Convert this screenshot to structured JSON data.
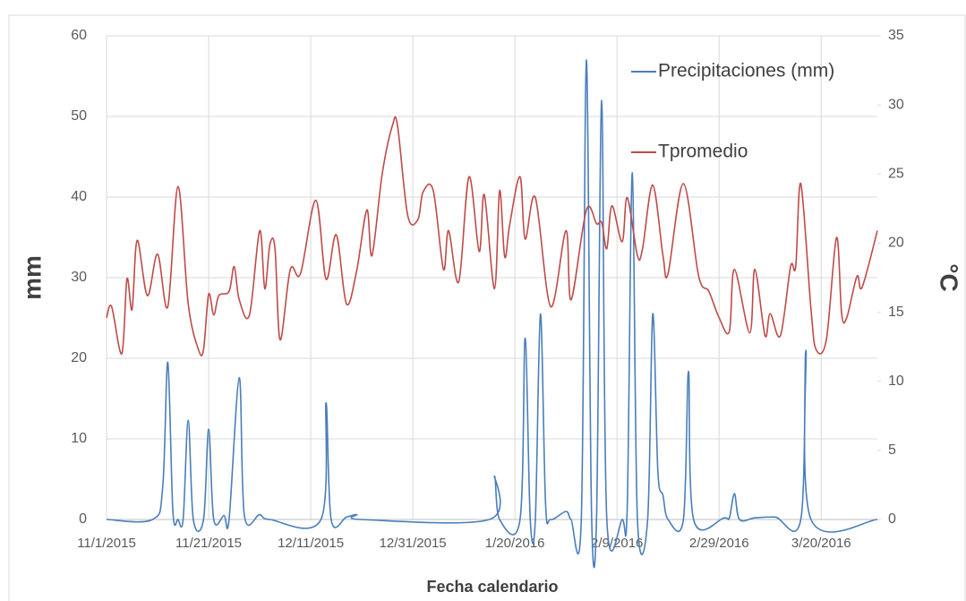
{
  "chart_data": {
    "type": "line",
    "x_label": "Fecha calendario",
    "y_label": "mm",
    "y2_label": "°C",
    "xlim": [
      "11/1/2015",
      "3/31/2016"
    ],
    "xticks": [
      "11/1/2015",
      "11/21/2015",
      "12/11/2015",
      "12/31/2015",
      "1/20/2016",
      "2/9/2016",
      "2/29/2016",
      "3/20/2016"
    ],
    "ylim": [
      0,
      60
    ],
    "yticks": [
      0,
      10,
      20,
      30,
      40,
      50,
      60
    ],
    "y2lim": [
      0,
      35
    ],
    "y2ticks": [
      0,
      5,
      10,
      15,
      20,
      25,
      30,
      35
    ],
    "grid": true,
    "legend": "upper right",
    "series": [
      {
        "name": "Precipitaciones (mm)",
        "color": "#4a7ebb",
        "axis": "y",
        "x": [
          "11/1/2015",
          "11/10/2015",
          "11/12/2015",
          "11/13/2015",
          "11/14/2015",
          "11/15/2015",
          "11/16/2015",
          "11/17/2015",
          "11/18/2015",
          "11/20/2015",
          "11/21/2015",
          "11/22/2015",
          "11/24/2015",
          "11/25/2015",
          "11/27/2015",
          "11/28/2015",
          "12/1/2015",
          "12/3/2015",
          "12/13/2015",
          "12/14/2015",
          "12/15/2015",
          "12/18/2015",
          "12/20/2015",
          "12/21/2015",
          "1/15/2016",
          "1/16/2016",
          "1/17/2016",
          "1/21/2016",
          "1/22/2016",
          "1/23/2016",
          "1/24/2016",
          "1/25/2016",
          "1/26/2016",
          "1/27/2016",
          "1/30/2016",
          "1/31/2016",
          "2/2/2016",
          "2/3/2016",
          "2/4/2016",
          "2/5/2016",
          "2/6/2016",
          "2/7/2016",
          "2/10/2016",
          "2/11/2016",
          "2/12/2016",
          "2/13/2016",
          "2/15/2016",
          "2/16/2016",
          "2/17/2016",
          "2/18/2016",
          "2/19/2016",
          "2/22/2016",
          "2/23/2016",
          "2/24/2016",
          "3/1/2016",
          "3/2/2016",
          "3/3/2016",
          "3/4/2016",
          "3/7/2016",
          "3/11/2016",
          "3/16/2016",
          "3/17/2016",
          "3/18/2016",
          "3/31/2016"
        ],
        "values": [
          0,
          0,
          4,
          19.5,
          1,
          0,
          0,
          12.3,
          0,
          0,
          11.2,
          0,
          0.5,
          0,
          17.6,
          0.5,
          0.6,
          0,
          0,
          14.5,
          0,
          0.3,
          0.6,
          0,
          0,
          5.4,
          0,
          0,
          22.5,
          0,
          0,
          25.5,
          2,
          0,
          1,
          0,
          0,
          57,
          1,
          0.5,
          52,
          0,
          0,
          1.5,
          43,
          0,
          0,
          25.5,
          6,
          3,
          0,
          0,
          18.4,
          0,
          0.2,
          0.2,
          3.2,
          0,
          0.2,
          0.3,
          0,
          21,
          0,
          0
        ]
      },
      {
        "name": "Tpromedio",
        "color": "#be4b48",
        "axis": "y2",
        "x": [
          "11/1/2015",
          "11/2/2015",
          "11/4/2015",
          "11/5/2015",
          "11/6/2015",
          "11/7/2015",
          "11/9/2015",
          "11/11/2015",
          "11/13/2015",
          "11/15/2015",
          "11/17/2015",
          "11/19/2015",
          "11/20/2015",
          "11/21/2015",
          "11/22/2015",
          "11/23/2015",
          "11/25/2015",
          "11/26/2015",
          "11/27/2015",
          "11/29/2015",
          "12/1/2015",
          "12/2/2015",
          "12/3/2015",
          "12/4/2015",
          "12/5/2015",
          "12/7/2015",
          "12/9/2015",
          "12/12/2015",
          "12/14/2015",
          "12/16/2015",
          "12/18/2015",
          "12/20/2015",
          "12/22/2015",
          "12/23/2015",
          "12/25/2015",
          "12/27/2015",
          "12/28/2015",
          "12/30/2015",
          "1/1/2016",
          "1/2/2016",
          "1/4/2016",
          "1/6/2016",
          "1/7/2016",
          "1/9/2016",
          "1/11/2016",
          "1/13/2016",
          "1/14/2016",
          "1/16/2016",
          "1/17/2016",
          "1/18/2016",
          "1/19/2016",
          "1/21/2016",
          "1/22/2016",
          "1/24/2016",
          "1/27/2016",
          "1/30/2016",
          "1/31/2016",
          "2/3/2016",
          "2/5/2016",
          "2/6/2016",
          "2/7/2016",
          "2/8/2016",
          "2/10/2016",
          "2/11/2016",
          "2/13/2016",
          "2/14/2016",
          "2/16/2016",
          "2/18/2016",
          "2/19/2016",
          "2/22/2016",
          "2/25/2016",
          "2/27/2016",
          "2/29/2016",
          "3/2/2016",
          "3/3/2016",
          "3/6/2016",
          "3/7/2016",
          "3/9/2016",
          "3/10/2016",
          "3/12/2016",
          "3/14/2016",
          "3/15/2016",
          "3/16/2016",
          "3/18/2016",
          "3/19/2016",
          "3/21/2016",
          "3/23/2016",
          "3/24/2016",
          "3/25/2016",
          "3/27/2016",
          "3/28/2016",
          "3/31/2016"
        ],
        "values": [
          14.6,
          15.4,
          12,
          17.4,
          15.2,
          20.2,
          16.2,
          19.2,
          15.4,
          24.1,
          15.6,
          12.3,
          12.3,
          16.3,
          14.8,
          16.2,
          16.5,
          18.3,
          15.9,
          14.8,
          20.9,
          16.7,
          19.9,
          19.6,
          13,
          18.1,
          17.8,
          23.1,
          17.4,
          20.6,
          15.6,
          18,
          22.4,
          19.1,
          25,
          28.5,
          28.5,
          22,
          21.7,
          23.7,
          23.8,
          18.1,
          20.9,
          17.2,
          24.8,
          19.4,
          23.5,
          16.7,
          23.8,
          19,
          21.4,
          24.8,
          20.3,
          23.3,
          15.4,
          20.9,
          15.9,
          22.4,
          21.4,
          21.5,
          19.6,
          22.7,
          20.1,
          23.3,
          19.1,
          19.6,
          24.2,
          19.1,
          17.8,
          24.3,
          17.6,
          16.5,
          14.6,
          13.6,
          18.1,
          13.5,
          18.1,
          13.3,
          14.9,
          13.3,
          18.3,
          18.3,
          24.3,
          15.2,
          12.3,
          13,
          20.4,
          14.9,
          14.6,
          17.6,
          16.8,
          20.9
        ]
      }
    ]
  }
}
